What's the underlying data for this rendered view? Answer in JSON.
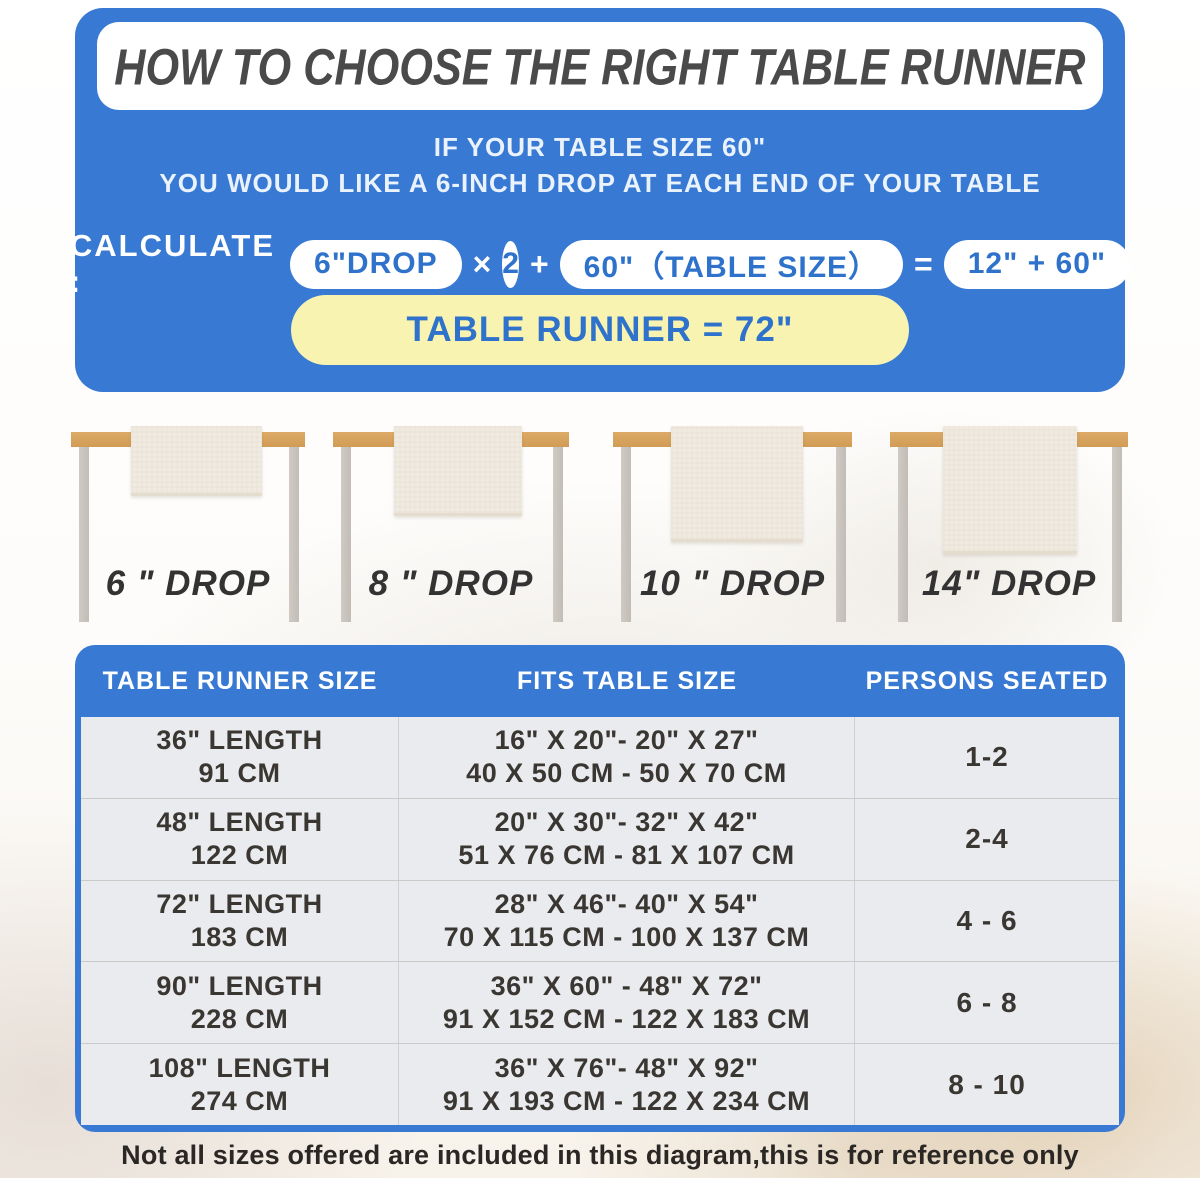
{
  "colors": {
    "panel_blue": "#3779d3",
    "pill_text_blue": "#2e72cb",
    "result_yellow": "#f8f3b0",
    "title_gray": "#4a4a4a",
    "wood_tan": "#d7a45f",
    "leg_gray": "#c6c0ba",
    "runner_cream": "#f0eae0",
    "cell_text": "#3a3632"
  },
  "header": {
    "title": "HOW TO CHOOSE THE RIGHT TABLE RUNNER",
    "subtitle_line1": "IF YOUR TABLE SIZE 60\"",
    "subtitle_line2": "YOU WOULD LIKE A 6-INCH DROP AT EACH END OF YOUR TABLE",
    "calc_label": "CALCULATE :",
    "calc_drop": "6\"DROP",
    "calc_times": "×",
    "calc_multiplier": "2",
    "calc_plus": "+",
    "calc_table_size": "60\"（TABLE SIZE）",
    "calc_equals": "=",
    "calc_result": "12\" + 60\"",
    "result_pill": "TABLE RUNNER = 72\""
  },
  "drops": [
    {
      "label": "6 \" DROP"
    },
    {
      "label": "8 \" DROP"
    },
    {
      "label": "10 \" DROP"
    },
    {
      "label": "14\" DROP"
    }
  ],
  "size_table": {
    "headers": [
      "TABLE RUNNER SIZE",
      "FITS TABLE SIZE",
      "PERSONS SEATED"
    ],
    "rows": [
      {
        "size_line1": "36\" LENGTH",
        "size_line2": "91 CM",
        "fits_line1": "16\" X 20\"- 20\" X 27\"",
        "fits_line2": "40 X 50 CM - 50 X 70 CM",
        "persons": "1-2"
      },
      {
        "size_line1": "48\" LENGTH",
        "size_line2": "122 CM",
        "fits_line1": "20\" X 30\"- 32\" X 42\"",
        "fits_line2": "51 X 76 CM - 81 X 107 CM",
        "persons": "2-4"
      },
      {
        "size_line1": "72\" LENGTH",
        "size_line2": "183 CM",
        "fits_line1": "28\" X 46\"- 40\" X 54\"",
        "fits_line2": "70 X 115 CM - 100 X 137 CM",
        "persons": "4 - 6"
      },
      {
        "size_line1": "90\" LENGTH",
        "size_line2": "228 CM",
        "fits_line1": "36\" X 60\" - 48\" X 72\"",
        "fits_line2": "91 X 152 CM - 122 X 183 CM",
        "persons": "6 - 8"
      },
      {
        "size_line1": "108\" LENGTH",
        "size_line2": "274 CM",
        "fits_line1": "36\" X 76\"- 48\" X 92\"",
        "fits_line2": "91 X 193 CM - 122 X 234 CM",
        "persons": "8 - 10"
      }
    ]
  },
  "footer": {
    "note": "Not all sizes offered are included in this diagram,this is for reference only"
  }
}
